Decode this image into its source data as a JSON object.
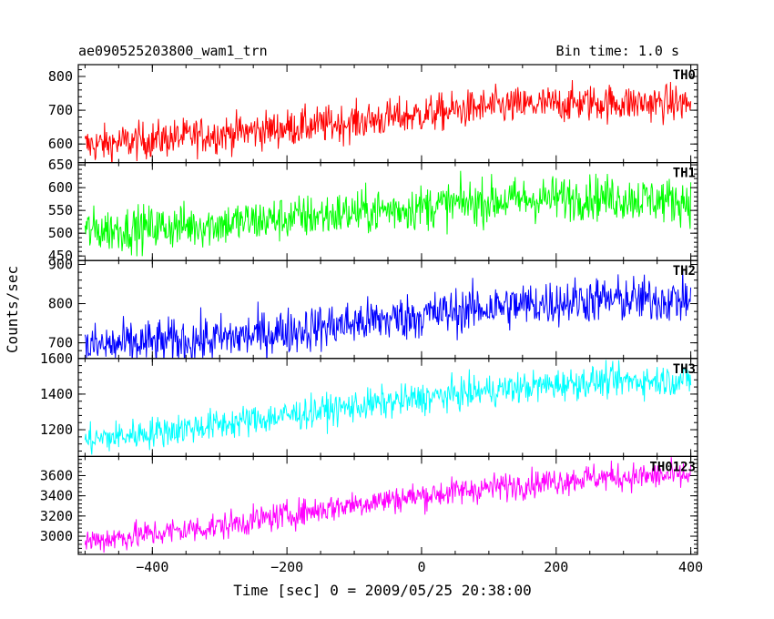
{
  "header": {
    "title": "ae090525203800_wam1_trn",
    "bin_time": "Bin time: 1.0 s"
  },
  "chart_data": {
    "type": "line",
    "xlabel": "Time [sec] 0 = 2009/05/25 20:38:00",
    "ylabel": "Counts/sec",
    "xlim": [
      -510,
      410
    ],
    "x_ticks": [
      -400,
      -200,
      0,
      200,
      400
    ],
    "x_tick_labels": [
      "−400",
      "−200",
      "0",
      "200",
      "400"
    ],
    "series_x_range": [
      -500,
      400
    ],
    "panels": [
      {
        "label": "TH0",
        "color": "#ff0000",
        "ylim": [
          545,
          835
        ],
        "y_ticks": [
          600,
          700,
          800
        ],
        "y_tick_labels": [
          "600",
          "700",
          "800"
        ],
        "trend": [
          [
            -500,
            595
          ],
          [
            -300,
            630
          ],
          [
            -100,
            665
          ],
          [
            100,
            710
          ],
          [
            250,
            722
          ],
          [
            400,
            720
          ]
        ],
        "noise": 28
      },
      {
        "label": "TH1",
        "color": "#00ff00",
        "ylim": [
          440,
          655
        ],
        "y_ticks": [
          450,
          500,
          550,
          600,
          650
        ],
        "y_tick_labels": [
          "450",
          "500",
          "550",
          "600",
          "650"
        ],
        "trend": [
          [
            -500,
            505
          ],
          [
            -300,
            520
          ],
          [
            -100,
            545
          ],
          [
            100,
            570
          ],
          [
            250,
            580
          ],
          [
            400,
            570
          ]
        ],
        "noise": 25
      },
      {
        "label": "TH2",
        "color": "#0000ff",
        "ylim": [
          660,
          910
        ],
        "y_ticks": [
          700,
          800,
          900
        ],
        "y_tick_labels": [
          "700",
          "800",
          "900"
        ],
        "trend": [
          [
            -500,
            690
          ],
          [
            -300,
            710
          ],
          [
            -100,
            750
          ],
          [
            100,
            790
          ],
          [
            250,
            810
          ],
          [
            400,
            810
          ]
        ],
        "noise": 30
      },
      {
        "label": "TH3",
        "color": "#00ffff",
        "ylim": [
          1050,
          1600
        ],
        "y_ticks": [
          1200,
          1400,
          1600
        ],
        "y_tick_labels": [
          "1200",
          "1400",
          "1600"
        ],
        "trend": [
          [
            -500,
            1140
          ],
          [
            -300,
            1230
          ],
          [
            -100,
            1330
          ],
          [
            100,
            1420
          ],
          [
            250,
            1470
          ],
          [
            400,
            1480
          ]
        ],
        "noise": 45
      },
      {
        "label": "TH0123",
        "color": "#ff00ff",
        "ylim": [
          2820,
          3790
        ],
        "y_ticks": [
          3000,
          3200,
          3400,
          3600
        ],
        "y_tick_labels": [
          "3000",
          "3200",
          "3400",
          "3600"
        ],
        "trend": [
          [
            -500,
            2950
          ],
          [
            -300,
            3100
          ],
          [
            -100,
            3320
          ],
          [
            100,
            3480
          ],
          [
            250,
            3580
          ],
          [
            400,
            3600
          ]
        ],
        "noise": 70
      }
    ]
  }
}
